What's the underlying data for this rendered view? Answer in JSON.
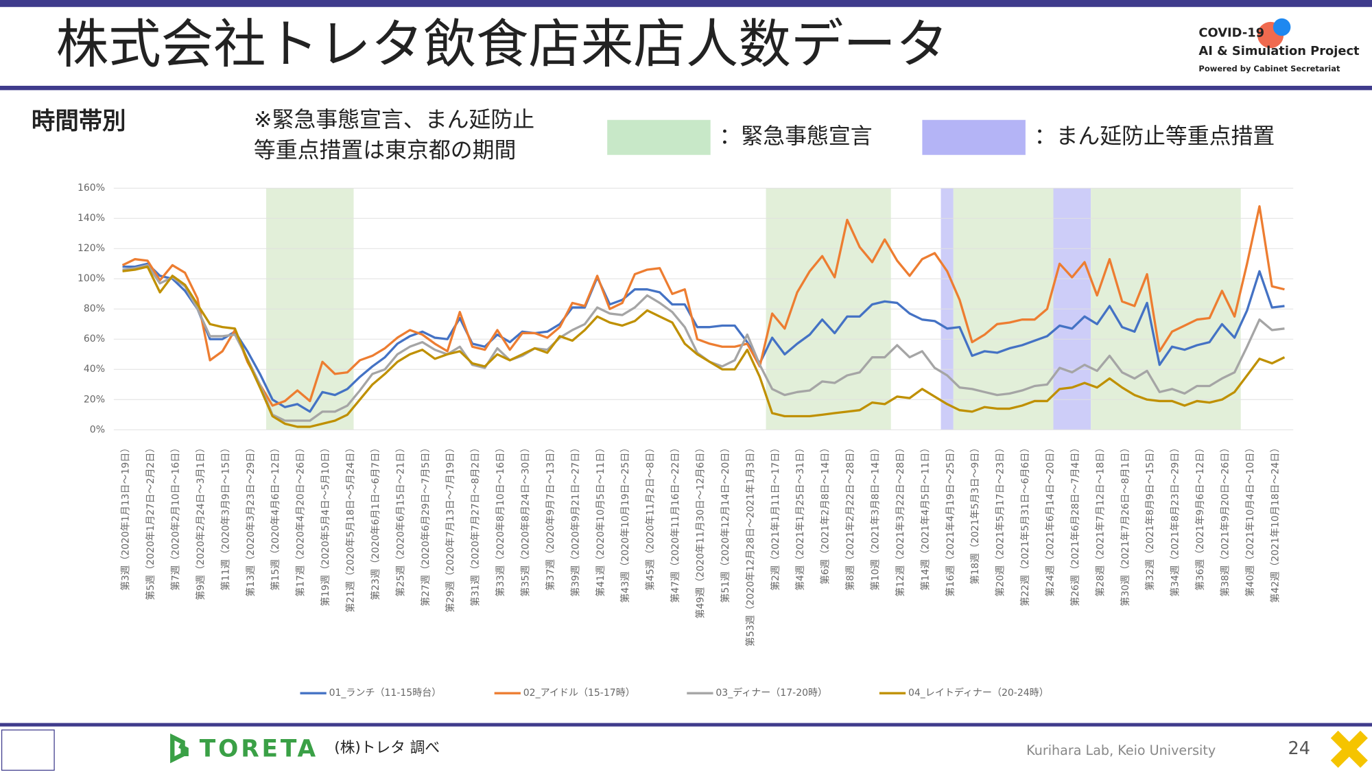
{
  "header": {
    "title": "株式会社トレタ飲食店来店人数データ",
    "logo": [
      "COVID-19",
      "AI & Simulation Project",
      "Powered by Cabinet Secretariat"
    ]
  },
  "section": "時間帯別",
  "note": [
    "※緊急事態宣言、まん延防止",
    "等重点措置は東京都の期間"
  ],
  "region_legend": [
    {
      "label": "：緊急事態宣言",
      "color": "#c8e8c8",
      "band_color": "#e2efd9"
    },
    {
      "label": "：まん延防止等重点措置",
      "color": "#b4b4f6",
      "band_color": "#cdcdf8"
    }
  ],
  "chart_data": {
    "type": "line",
    "categories": [
      "第3週（2020年1月13日～19日）",
      null,
      "第5週（2020年1月27日～2月2日）",
      null,
      "第7週（2020年2月10日～16日）",
      null,
      "第9週（2020年2月24日～3月1日）",
      null,
      "第11週（2020年3月9日～15日）",
      null,
      "第13週（2020年3月23日～29日）",
      null,
      "第15週（2020年4月6日～12日）",
      null,
      "第17週（2020年4月20日～26日）",
      null,
      "第19週（2020年5月4日～5月10日）",
      null,
      "第21週（2020年5月18日～5月24日）",
      null,
      "第23週（2020年6月1日～6月7日）",
      null,
      "第25週（2020年6月15日～21日）",
      null,
      "第27週（2020年6月29日～7月5日）",
      null,
      "第29週（2020年7月13日～7月19日）",
      null,
      "第31週（2020年7月27日～8月2日）",
      null,
      "第33週（2020年8月10日～16日）",
      null,
      "第35週（2020年8月24日～30日）",
      null,
      "第37週（2020年9月7日～13日）",
      null,
      "第39週（2020年9月21日～27日）",
      null,
      "第41週（2020年10月5日～11日）",
      null,
      "第43週（2020年10月19日～25日）",
      null,
      "第45週（2020年11月2日～8日）",
      null,
      "第47週（2020年11月16日～22日）",
      null,
      "第49週（2020年11月30日～12月6日）",
      null,
      "第51週（2020年12月14日～20日）",
      null,
      "第53週（2020年12月28日～2021年1月3日）",
      null,
      "第2週（2021年1月11日～17日）",
      null,
      "第4週（2021年1月25日～31日）",
      null,
      "第6週（2021年2月8日～14日）",
      null,
      "第8週（2021年2月22日～28日）",
      null,
      "第10週（2021年3月8日～14日）",
      null,
      "第12週（2021年3月22日～28日）",
      null,
      "第14週（2021年4月5日～11日）",
      null,
      "第16週（2021年4月19日～25日）",
      null,
      "第18週（2021年5月3日～9日）",
      null,
      "第20週（2021年5月17日～23日）",
      null,
      "第22週（2021年5月31日～6月6日）",
      null,
      "第24週（2021年6月14日～20日）",
      null,
      "第26週（2021年6月28日～7月4日）",
      null,
      "第28週（2021年7月12日～18日）",
      null,
      "第30週（2021年7月26日～8月1日）",
      null,
      "第32週（2021年8月9日～15日）",
      null,
      "第34週（2021年8月23日～29日）",
      null,
      "第36週（2021年9月6日～12日）",
      null,
      "第38週（2021年9月20日～26日）",
      null,
      "第40週（2021年10月4日～10日）",
      null,
      "第42週（2021年10月18日～24日）",
      null
    ],
    "series": [
      {
        "name": "01_ランチ（11-15時台）",
        "color": "#4472c4",
        "values": [
          108,
          108,
          110,
          102,
          100,
          92,
          80,
          60,
          60,
          65,
          52,
          37,
          20,
          15,
          17,
          12,
          25,
          23,
          27,
          35,
          42,
          48,
          57,
          62,
          65,
          61,
          60,
          74,
          57,
          55,
          63,
          58,
          65,
          64,
          65,
          70,
          81,
          81,
          101,
          83,
          86,
          93,
          93,
          91,
          83,
          83,
          68,
          68,
          69,
          69,
          58,
          44,
          61,
          50,
          57,
          63,
          73,
          64,
          75,
          75,
          83,
          85,
          84,
          77,
          73,
          72,
          67,
          68,
          49,
          52,
          51,
          54,
          56,
          59,
          62,
          69,
          67,
          75,
          70,
          82,
          68,
          65,
          84,
          43,
          55,
          53,
          56,
          58,
          70,
          61,
          79,
          105,
          81,
          82
        ]
      },
      {
        "name": "02_アイドル（15-17時）",
        "color": "#ed7d31",
        "values": [
          109,
          113,
          112,
          99,
          109,
          104,
          87,
          46,
          52,
          66,
          45,
          30,
          16,
          19,
          26,
          19,
          45,
          37,
          38,
          46,
          49,
          54,
          61,
          66,
          63,
          57,
          52,
          78,
          55,
          53,
          66,
          53,
          64,
          64,
          61,
          68,
          84,
          82,
          102,
          80,
          84,
          103,
          106,
          107,
          90,
          93,
          60,
          57,
          55,
          55,
          57,
          42,
          77,
          67,
          91,
          105,
          115,
          101,
          139,
          121,
          111,
          126,
          112,
          102,
          113,
          117,
          105,
          86,
          58,
          63,
          70,
          71,
          73,
          73,
          80,
          110,
          101,
          111,
          89,
          113,
          85,
          82,
          103,
          52,
          65,
          69,
          73,
          74,
          92,
          75,
          110,
          148,
          95,
          93
        ]
      },
      {
        "name": "03_ディナー（17-20時）",
        "color": "#a5a5a5",
        "values": [
          106,
          107,
          109,
          97,
          101,
          95,
          80,
          62,
          62,
          63,
          47,
          30,
          10,
          6,
          6,
          6,
          12,
          12,
          16,
          26,
          37,
          40,
          50,
          55,
          58,
          53,
          50,
          55,
          43,
          41,
          54,
          46,
          49,
          54,
          53,
          61,
          66,
          70,
          81,
          77,
          76,
          81,
          89,
          84,
          78,
          68,
          51,
          45,
          42,
          46,
          63,
          43,
          27,
          23,
          25,
          26,
          32,
          31,
          36,
          38,
          48,
          48,
          56,
          48,
          52,
          41,
          36,
          28,
          27,
          25,
          23,
          24,
          26,
          29,
          30,
          41,
          38,
          43,
          39,
          49,
          38,
          34,
          39,
          25,
          27,
          24,
          29,
          29,
          34,
          38,
          55,
          73,
          66,
          67
        ]
      },
      {
        "name": "04_レイトディナー（20-24時）",
        "color": "#bf9000",
        "values": [
          105,
          106,
          108,
          91,
          102,
          96,
          83,
          70,
          68,
          67,
          46,
          28,
          9,
          4,
          2,
          2,
          4,
          6,
          10,
          20,
          30,
          37,
          45,
          50,
          53,
          47,
          50,
          52,
          44,
          42,
          50,
          46,
          50,
          54,
          51,
          62,
          59,
          66,
          75,
          71,
          69,
          72,
          79,
          75,
          71,
          57,
          50,
          45,
          40,
          40,
          53,
          35,
          11,
          9,
          9,
          9,
          10,
          11,
          12,
          13,
          18,
          17,
          22,
          21,
          27,
          22,
          17,
          13,
          12,
          15,
          14,
          14,
          16,
          19,
          19,
          27,
          28,
          31,
          28,
          34,
          28,
          23,
          20,
          19,
          19,
          16,
          19,
          18,
          20,
          25,
          36,
          47,
          44,
          48
        ]
      }
    ],
    "ylim": [
      0,
      160
    ],
    "yticks": [
      {
        "value": 0,
        "label": "0%"
      },
      {
        "value": 20,
        "label": "20%"
      },
      {
        "value": 40,
        "label": "40%"
      },
      {
        "value": 60,
        "label": "60%"
      },
      {
        "value": 80,
        "label": "80%"
      },
      {
        "value": 100,
        "label": "100%"
      },
      {
        "value": 120,
        "label": "120%"
      },
      {
        "value": 140,
        "label": "140%"
      },
      {
        "value": 160,
        "label": "160%"
      }
    ],
    "shaded_regions": [
      {
        "legend": 0,
        "from": 12,
        "to": 18
      },
      {
        "legend": 0,
        "from": 52,
        "to": 61
      },
      {
        "legend": 1,
        "from": 66,
        "to": 66
      },
      {
        "legend": 0,
        "from": 67,
        "to": 74
      },
      {
        "legend": 1,
        "from": 75,
        "to": 77
      },
      {
        "legend": 0,
        "from": 78,
        "to": 89
      }
    ],
    "legend": "bottom"
  },
  "footer": {
    "brand": "TORETA",
    "source": "(株)トレタ 調べ",
    "credit": "Kurihara Lab, Keio University",
    "page": "24"
  }
}
